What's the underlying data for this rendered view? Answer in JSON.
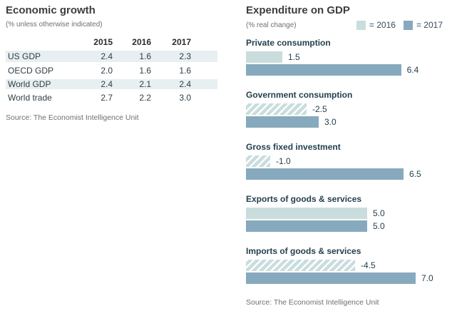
{
  "left_panel": {
    "title": "Economic growth",
    "subtitle": "(% unless otherwise indicated)",
    "source": "Source: The Economist Intelligence Unit",
    "table": {
      "columns": [
        "2015",
        "2016",
        "2017"
      ],
      "rows": [
        {
          "label": "US GDP",
          "values": [
            "2.4",
            "1.6",
            "2.3"
          ]
        },
        {
          "label": "OECD GDP",
          "values": [
            "2.0",
            "1.6",
            "1.6"
          ]
        },
        {
          "label": "World GDP",
          "values": [
            "2.4",
            "2.1",
            "2.4"
          ]
        },
        {
          "label": "World trade",
          "values": [
            "2.7",
            "2.2",
            "3.0"
          ]
        }
      ]
    }
  },
  "right_panel": {
    "legend": [
      {
        "label": "= 2016",
        "swatch_color": "#c9dddd"
      },
      {
        "label": "= 2017",
        "swatch_color": "#87a9bd"
      }
    ],
    "source": "Source: The Economist Intelligence Unit"
  },
  "chart_data": {
    "type": "bar",
    "orientation": "horizontal",
    "title": "Expenditure on GDP",
    "note": "(% real change)",
    "categories": [
      "Private consumption",
      "Government consumption",
      "Gross fixed investment",
      "Exports of goods & services",
      "Imports of goods & services"
    ],
    "series": [
      {
        "name": "2016",
        "color": "#c9dddd",
        "values": [
          1.5,
          -2.5,
          -1.0,
          5.0,
          -4.5
        ]
      },
      {
        "name": "2017",
        "color": "#87a9bd",
        "values": [
          6.4,
          3.0,
          6.5,
          5.0,
          7.0
        ]
      }
    ],
    "value_labels": true,
    "negative_style": "hatched",
    "xlim": [
      0,
      8
    ],
    "grid": false,
    "legend_position": "top-right",
    "colors": {
      "row_shade": "#e8eff0"
    }
  }
}
